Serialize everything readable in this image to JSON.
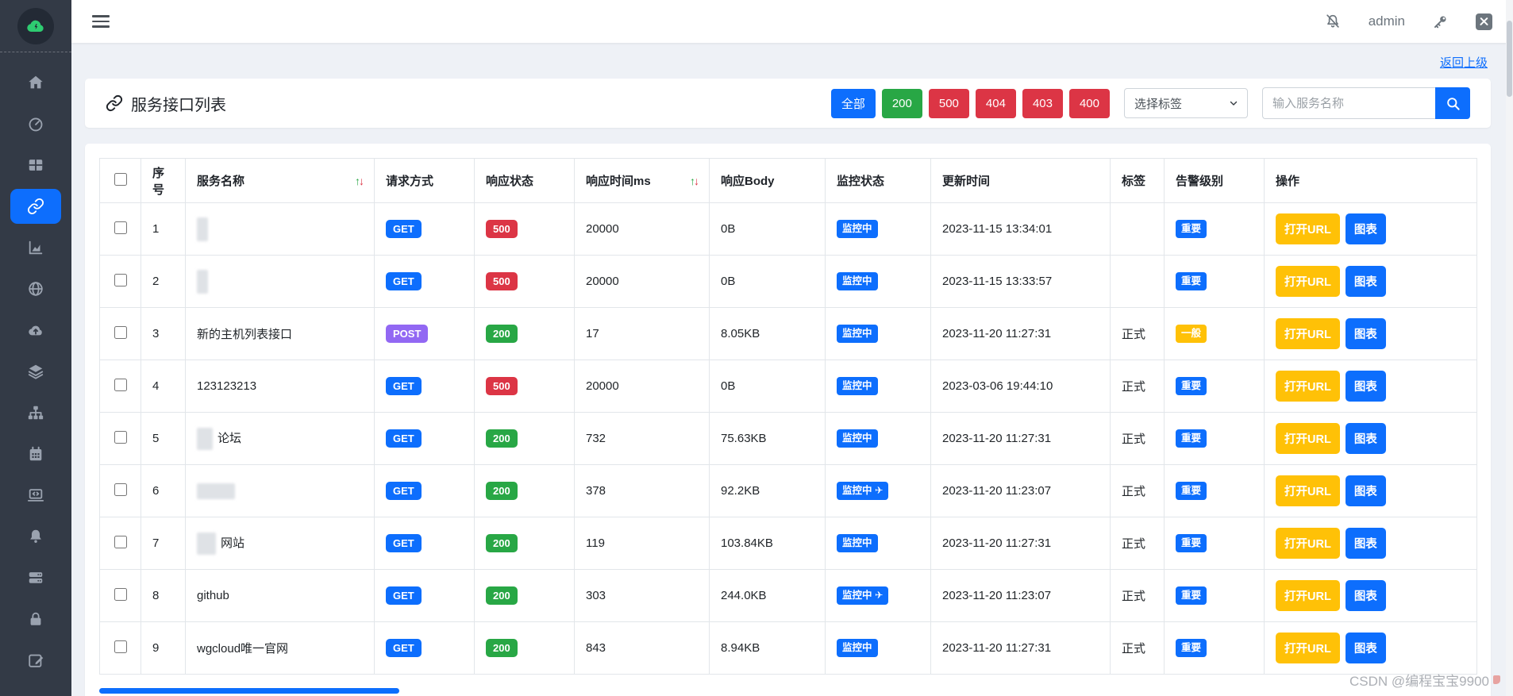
{
  "topbar": {
    "username": "admin"
  },
  "page": {
    "back_link": "返回上级",
    "watermark": "CSDN @编程宝宝9900"
  },
  "panel": {
    "title": "服务接口列表",
    "status_filters": [
      {
        "label": "全部",
        "color": "#0d6efd"
      },
      {
        "label": "200",
        "color": "#28a745"
      },
      {
        "label": "500",
        "color": "#dc3545"
      },
      {
        "label": "404",
        "color": "#dc3545"
      },
      {
        "label": "403",
        "color": "#dc3545"
      },
      {
        "label": "400",
        "color": "#dc3545"
      }
    ],
    "tag_select_value": "选择标签",
    "search_placeholder": "输入服务名称"
  },
  "table": {
    "columns": [
      {
        "label": "序号"
      },
      {
        "label": "服务名称",
        "sortable": true
      },
      {
        "label": "请求方式"
      },
      {
        "label": "响应状态"
      },
      {
        "label": "响应时间ms",
        "sortable": true
      },
      {
        "label": "响应Body"
      },
      {
        "label": "监控状态"
      },
      {
        "label": "更新时间"
      },
      {
        "label": "标签"
      },
      {
        "label": "告警级别"
      },
      {
        "label": "操作"
      }
    ],
    "actions": {
      "open_url": "打开URL",
      "chart": "图表"
    },
    "rows": [
      {
        "num": "1",
        "name": "",
        "redacted": true,
        "redact_w": 14,
        "redact_h": 30,
        "method": "GET",
        "status": "500",
        "time_ms": "20000",
        "body": "0B",
        "monitor": "监控中",
        "plane": false,
        "updated": "2023-11-15 13:34:01",
        "tag": "",
        "level": "重要"
      },
      {
        "num": "2",
        "name": "",
        "redacted": true,
        "redact_w": 14,
        "redact_h": 30,
        "method": "GET",
        "status": "500",
        "time_ms": "20000",
        "body": "0B",
        "monitor": "监控中",
        "plane": false,
        "updated": "2023-11-15 13:33:57",
        "tag": "",
        "level": "重要"
      },
      {
        "num": "3",
        "name": "新的主机列表接口",
        "redacted": false,
        "method": "POST",
        "status": "200",
        "time_ms": "17",
        "body": "8.05KB",
        "monitor": "监控中",
        "plane": false,
        "updated": "2023-11-20 11:27:31",
        "tag": "正式",
        "level": "一般"
      },
      {
        "num": "4",
        "name": "123123213",
        "redacted": false,
        "method": "GET",
        "status": "500",
        "time_ms": "20000",
        "body": "0B",
        "monitor": "监控中",
        "plane": false,
        "updated": "2023-03-06 19:44:10",
        "tag": "正式",
        "level": "重要"
      },
      {
        "num": "5",
        "name": "论坛",
        "redacted": true,
        "redact_w": 20,
        "redact_h": 28,
        "method": "GET",
        "status": "200",
        "time_ms": "732",
        "body": "75.63KB",
        "monitor": "监控中",
        "plane": false,
        "updated": "2023-11-20 11:27:31",
        "tag": "正式",
        "level": "重要"
      },
      {
        "num": "6",
        "name": "",
        "redacted": true,
        "redact_w": 48,
        "redact_h": 20,
        "method": "GET",
        "status": "200",
        "time_ms": "378",
        "body": "92.2KB",
        "monitor": "监控中",
        "plane": true,
        "updated": "2023-11-20 11:23:07",
        "tag": "正式",
        "level": "重要"
      },
      {
        "num": "7",
        "name": "网站",
        "redacted": true,
        "redact_w": 24,
        "redact_h": 28,
        "method": "GET",
        "status": "200",
        "time_ms": "119",
        "body": "103.84KB",
        "monitor": "监控中",
        "plane": false,
        "updated": "2023-11-20 11:27:31",
        "tag": "正式",
        "level": "重要"
      },
      {
        "num": "8",
        "name": "github",
        "redacted": false,
        "method": "GET",
        "status": "200",
        "time_ms": "303",
        "body": "244.0KB",
        "monitor": "监控中",
        "plane": true,
        "updated": "2023-11-20 11:23:07",
        "tag": "正式",
        "level": "重要"
      },
      {
        "num": "9",
        "name": "wgcloud唯一官网",
        "redacted": false,
        "method": "GET",
        "status": "200",
        "time_ms": "843",
        "body": "8.94KB",
        "monitor": "监控中",
        "plane": false,
        "updated": "2023-11-20 11:27:31",
        "tag": "正式",
        "level": "重要"
      }
    ]
  },
  "colors": {
    "primary": "#0d6efd",
    "success": "#28a745",
    "danger": "#dc3545",
    "warning": "#ffc107",
    "purple": "#9268f3"
  },
  "sidebar": {
    "items": [
      "home",
      "gauge",
      "grid",
      "link",
      "area-chart",
      "globe",
      "cloud-upload",
      "layers",
      "sitemap",
      "calendar",
      "laptop-code",
      "bell",
      "server",
      "lock",
      "edit"
    ],
    "active": "link"
  }
}
